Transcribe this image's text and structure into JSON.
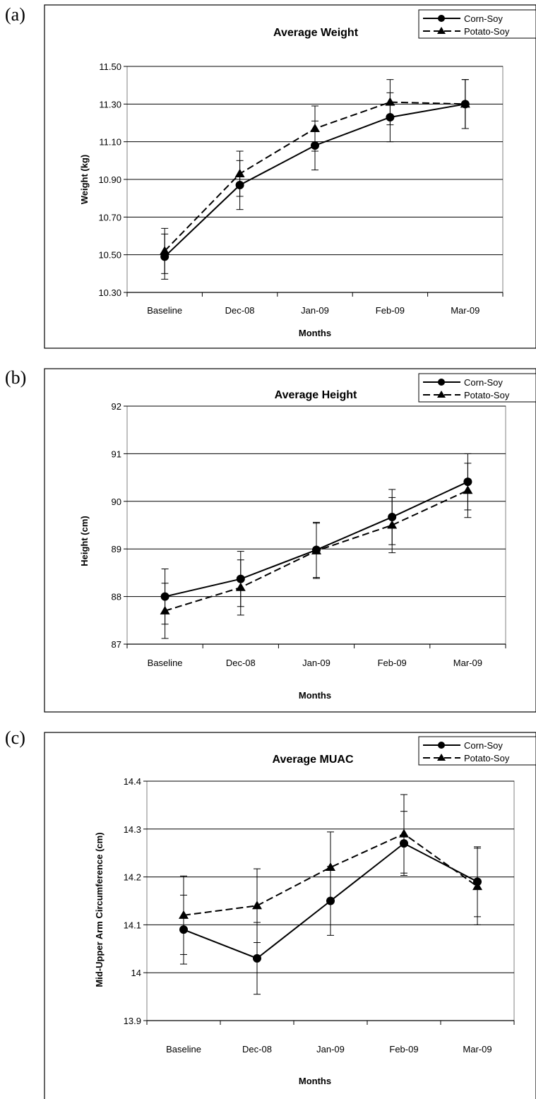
{
  "panels": [
    {
      "letter": "(a)"
    },
    {
      "letter": "(b)"
    },
    {
      "letter": "(c)"
    }
  ],
  "chart_data": [
    {
      "type": "line",
      "title": "Average Weight",
      "xlabel": "Months",
      "ylabel": "Weight (kg)",
      "categories": [
        "Baseline",
        "Dec-08",
        "Jan-09",
        "Feb-09",
        "Mar-09"
      ],
      "ylim": [
        10.3,
        11.5
      ],
      "yticks": [
        "10.30",
        "10.50",
        "10.70",
        "10.90",
        "11.10",
        "11.30",
        "11.50"
      ],
      "grid": true,
      "legend_position": "top-right",
      "series": [
        {
          "name": "Corn-Soy",
          "marker": "circle",
          "dash": "solid",
          "values": [
            10.49,
            10.87,
            11.08,
            11.23,
            11.3
          ],
          "errors": [
            0.12,
            0.13,
            0.13,
            0.13,
            0.13
          ]
        },
        {
          "name": "Potato-Soy",
          "marker": "triangle",
          "dash": "dashed",
          "values": [
            10.52,
            10.93,
            11.17,
            11.31,
            11.3
          ],
          "errors": [
            0.12,
            0.12,
            0.12,
            0.12,
            0.13
          ]
        }
      ]
    },
    {
      "type": "line",
      "title": "Average Height",
      "xlabel": "Months",
      "ylabel": "Height (cm)",
      "categories": [
        "Baseline",
        "Dec-08",
        "Jan-09",
        "Feb-09",
        "Mar-09"
      ],
      "ylim": [
        87,
        92
      ],
      "yticks": [
        "87",
        "88",
        "89",
        "90",
        "91",
        "92"
      ],
      "grid": true,
      "legend_position": "top-right",
      "series": [
        {
          "name": "Corn-Soy",
          "marker": "circle",
          "dash": "solid",
          "values": [
            88.0,
            88.37,
            88.98,
            89.67,
            90.41
          ],
          "errors": [
            0.58,
            0.58,
            0.58,
            0.58,
            0.59
          ]
        },
        {
          "name": "Potato-Soy",
          "marker": "triangle",
          "dash": "dashed",
          "values": [
            87.7,
            88.19,
            88.96,
            89.5,
            90.23
          ],
          "errors": [
            0.58,
            0.58,
            0.58,
            0.58,
            0.57
          ]
        }
      ]
    },
    {
      "type": "line",
      "title": "Average MUAC",
      "xlabel": "Months",
      "ylabel": "Mid-Upper Arm Circumference (cm)",
      "categories": [
        "Baseline",
        "Dec-08",
        "Jan-09",
        "Feb-09",
        "Mar-09"
      ],
      "ylim": [
        13.9,
        14.4
      ],
      "yticks": [
        "13.9",
        "14",
        "14.1",
        "14.2",
        "14.3",
        "14.4"
      ],
      "grid": true,
      "legend_position": "top-right",
      "series": [
        {
          "name": "Corn-Soy",
          "marker": "circle",
          "dash": "solid",
          "values": [
            14.09,
            14.03,
            14.15,
            14.27,
            14.19
          ],
          "errors": [
            0.072,
            0.075,
            0.072,
            0.067,
            0.073
          ]
        },
        {
          "name": "Potato-Soy",
          "marker": "triangle",
          "dash": "dashed",
          "values": [
            14.12,
            14.14,
            14.22,
            14.29,
            14.18
          ],
          "errors": [
            0.082,
            0.077,
            0.074,
            0.082,
            0.08
          ]
        }
      ]
    }
  ]
}
